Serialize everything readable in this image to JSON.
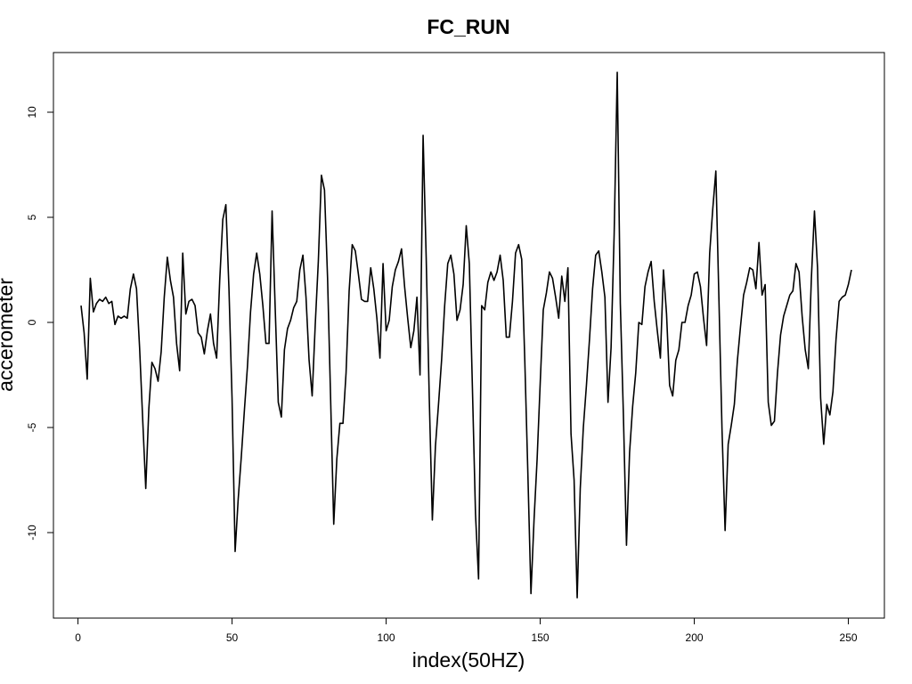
{
  "chart_data": {
    "type": "line",
    "title": "FC_RUN",
    "xlabel": "index(50HZ)",
    "ylabel": "accerometer",
    "xlim": [
      1,
      251
    ],
    "ylim": [
      -13,
      12
    ],
    "xticks": [
      0,
      50,
      100,
      150,
      200,
      250
    ],
    "yticks": [
      -10,
      -5,
      0,
      5,
      10
    ],
    "grid": false,
    "series": [
      {
        "name": "",
        "color": "#000000",
        "x": [
          1,
          2,
          3,
          4,
          5,
          6,
          7,
          8,
          9,
          10,
          11,
          12,
          13,
          14,
          15,
          16,
          17,
          18,
          19,
          20,
          21,
          22,
          23,
          24,
          25,
          26,
          27,
          28,
          29,
          30,
          31,
          32,
          33,
          34,
          35,
          36,
          37,
          38,
          39,
          40,
          41,
          42,
          43,
          44,
          45,
          46,
          47,
          48,
          49,
          50,
          51,
          52,
          53,
          54,
          55,
          56,
          57,
          58,
          59,
          60,
          61,
          62,
          63,
          64,
          65,
          66,
          67,
          68,
          69,
          70,
          71,
          72,
          73,
          74,
          75,
          76,
          77,
          78,
          79,
          80,
          81,
          82,
          83,
          84,
          85,
          86,
          87,
          88,
          89,
          90,
          91,
          92,
          93,
          94,
          95,
          96,
          97,
          98,
          99,
          100,
          101,
          102,
          103,
          104,
          105,
          106,
          107,
          108,
          109,
          110,
          111,
          112,
          113,
          114,
          115,
          116,
          117,
          118,
          119,
          120,
          121,
          122,
          123,
          124,
          125,
          126,
          127,
          128,
          129,
          130,
          131,
          132,
          133,
          134,
          135,
          136,
          137,
          138,
          139,
          140,
          141,
          142,
          143,
          144,
          145,
          146,
          147,
          148,
          149,
          150,
          151,
          152,
          153,
          154,
          155,
          156,
          157,
          158,
          159,
          160,
          161,
          162,
          163,
          164,
          165,
          166,
          167,
          168,
          169,
          170,
          171,
          172,
          173,
          174,
          175,
          176,
          177,
          178,
          179,
          180,
          181,
          182,
          183,
          184,
          185,
          186,
          187,
          188,
          189,
          190,
          191,
          192,
          193,
          194,
          195,
          196,
          197,
          198,
          199,
          200,
          201,
          202,
          203,
          204,
          205,
          206,
          207,
          208,
          209,
          210,
          211,
          212,
          213,
          214,
          215,
          216,
          217,
          218,
          219,
          220,
          221,
          222,
          223,
          224,
          225,
          226,
          227,
          228,
          229,
          230,
          231,
          232,
          233,
          234,
          235,
          236,
          237,
          238,
          239,
          240,
          241,
          242,
          243,
          244,
          245,
          246,
          247,
          248,
          249,
          250,
          251
        ],
        "y": [
          0.8,
          -0.5,
          -2.7,
          2.1,
          0.5,
          0.9,
          1.1,
          1.0,
          1.2,
          0.9,
          1.0,
          -0.1,
          0.3,
          0.2,
          0.3,
          0.2,
          1.6,
          2.3,
          1.6,
          -1.2,
          -4.6,
          -7.9,
          -4.1,
          -1.9,
          -2.2,
          -2.8,
          -1.4,
          1.2,
          3.1,
          2.0,
          1.2,
          -1.0,
          -2.3,
          3.3,
          0.4,
          1.0,
          1.1,
          0.8,
          -0.5,
          -0.7,
          -1.5,
          -0.4,
          0.4,
          -1.0,
          -1.7,
          2.0,
          4.9,
          5.6,
          1.6,
          -3.6,
          -10.9,
          -8.4,
          -6.4,
          -4.2,
          -2.1,
          0.5,
          2.3,
          3.3,
          2.3,
          0.8,
          -1.0,
          -1.0,
          5.3,
          0.7,
          -3.8,
          -4.5,
          -1.3,
          -0.3,
          0.1,
          0.7,
          1.0,
          2.5,
          3.2,
          1.2,
          -1.8,
          -3.5,
          -0.1,
          2.9,
          7.0,
          6.3,
          2.1,
          -3.7,
          -9.6,
          -6.5,
          -4.8,
          -4.8,
          -2.4,
          1.5,
          3.7,
          3.4,
          2.3,
          1.1,
          1.0,
          1.0,
          2.6,
          1.6,
          0.2,
          -1.7,
          2.8,
          -0.4,
          0.1,
          1.7,
          2.5,
          2.9,
          3.5,
          1.7,
          0.2,
          -1.2,
          -0.4,
          1.2,
          -2.5,
          8.9,
          3.1,
          -3.6,
          -9.4,
          -5.9,
          -3.9,
          -1.8,
          0.8,
          2.8,
          3.2,
          2.3,
          0.1,
          0.6,
          1.8,
          4.6,
          2.8,
          -3.1,
          -9.1,
          -12.2,
          0.8,
          0.6,
          1.9,
          2.4,
          2.0,
          2.4,
          3.2,
          2.0,
          -0.7,
          -0.7,
          1.0,
          3.3,
          3.7,
          3.0,
          -1.8,
          -7.2,
          -12.9,
          -9.4,
          -6.5,
          -2.9,
          0.6,
          1.4,
          2.4,
          2.1,
          1.2,
          0.2,
          2.2,
          1.0,
          2.6,
          -5.3,
          -7.5,
          -13.1,
          -7.9,
          -5.0,
          -3.0,
          -0.8,
          1.6,
          3.2,
          3.4,
          2.4,
          1.2,
          -3.8,
          -1.2,
          4.2,
          11.9,
          0.9,
          -4.4,
          -10.6,
          -6.2,
          -4.0,
          -2.4,
          -0.0,
          -0.1,
          1.7,
          2.4,
          2.9,
          1.0,
          -0.4,
          -1.7,
          2.5,
          0.4,
          -3.0,
          -3.5,
          -1.8,
          -1.3,
          -0.0,
          0.0,
          0.8,
          1.3,
          2.3,
          2.4,
          1.7,
          0.2,
          -1.1,
          3.3,
          5.4,
          7.2,
          1.1,
          -5.1,
          -9.9,
          -5.8,
          -4.9,
          -3.9,
          -1.8,
          -0.2,
          1.3,
          1.9,
          2.6,
          2.5,
          1.6,
          3.8,
          1.3,
          1.8,
          -3.8,
          -4.9,
          -4.7,
          -2.4,
          -0.6,
          0.3,
          0.8,
          1.3,
          1.5,
          2.8,
          2.4,
          0.3,
          -1.3,
          -2.2,
          2.1,
          5.3,
          2.6,
          -3.6,
          -5.8,
          -3.9,
          -4.4,
          -3.3,
          -0.8,
          1.0,
          1.2,
          1.3,
          1.8,
          2.5
        ]
      }
    ]
  }
}
